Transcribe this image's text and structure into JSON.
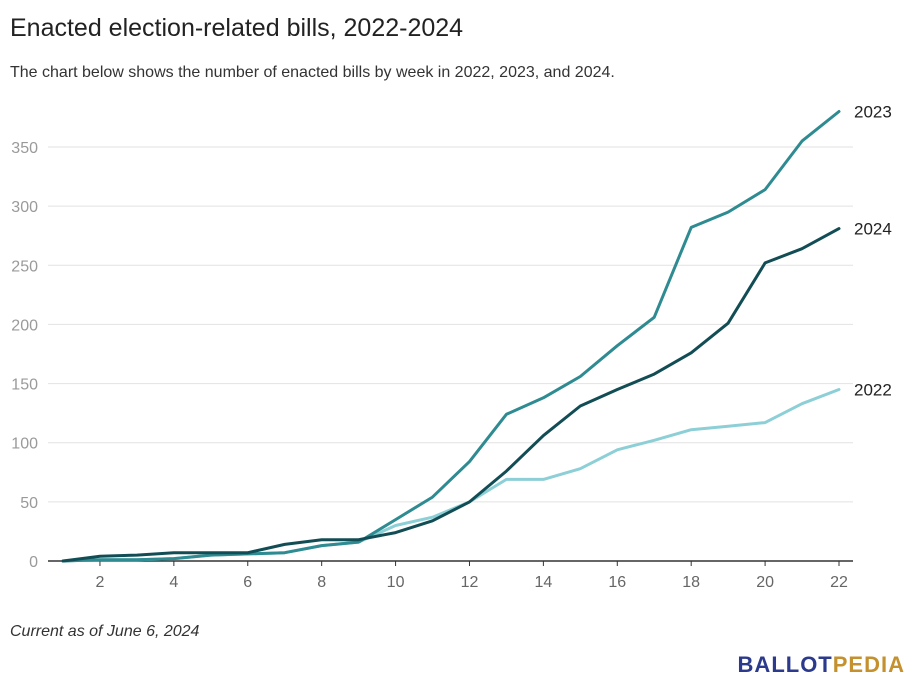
{
  "title": "Enacted election-related bills, 2022-2024",
  "subtitle": "The chart below shows the number of enacted bills by week in 2022, 2023, and 2024.",
  "note": "Current as of June 6, 2024",
  "logo": {
    "part1": "BALLOT",
    "part2": "PEDIA",
    "color1": "#2b3a8c",
    "color2": "#c4912e"
  },
  "chart_data": {
    "type": "line",
    "x": [
      1,
      2,
      3,
      4,
      5,
      6,
      7,
      8,
      9,
      10,
      11,
      12,
      13,
      14,
      15,
      16,
      17,
      18,
      19,
      20,
      21,
      22
    ],
    "xticks": [
      2,
      4,
      6,
      8,
      10,
      12,
      14,
      16,
      18,
      20,
      22
    ],
    "yticks": [
      0,
      50,
      100,
      150,
      200,
      250,
      300,
      350
    ],
    "xlim": [
      1,
      22
    ],
    "ylim": [
      0,
      370
    ],
    "grid": "horizontal",
    "legend": "direct labels at line ends",
    "series": [
      {
        "name": "2022",
        "color": "#8dcfd6",
        "values": [
          0,
          1,
          1,
          2,
          5,
          6,
          7,
          13,
          16,
          30,
          37,
          50,
          69,
          69,
          78,
          94,
          102,
          111,
          114,
          117,
          133,
          145
        ]
      },
      {
        "name": "2023",
        "color": "#2e8b91",
        "values": [
          0,
          1,
          1,
          2,
          5,
          6,
          7,
          13,
          16,
          35,
          54,
          84,
          124,
          138,
          156,
          182,
          206,
          282,
          295,
          314,
          355,
          380
        ]
      },
      {
        "name": "2024",
        "color": "#124d55",
        "values": [
          0,
          4,
          5,
          7,
          7,
          7,
          14,
          18,
          18,
          24,
          34,
          50,
          76,
          106,
          131,
          145,
          158,
          176,
          201,
          252,
          264,
          281
        ]
      }
    ]
  }
}
